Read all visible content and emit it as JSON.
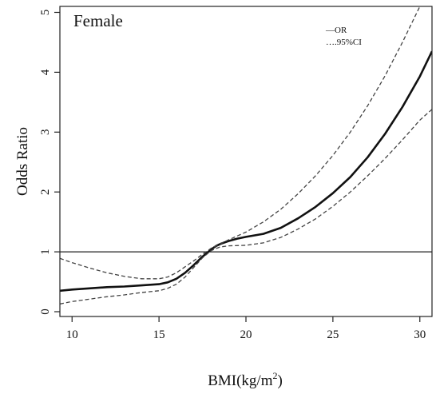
{
  "chart_data": {
    "type": "line",
    "panel_title": "Female",
    "xlabel": "BMI(kg/m",
    "xlabel_sup": "2",
    "xlabel_close": ")",
    "ylabel": "Odds Ratio",
    "xlim": [
      9.3,
      30.7
    ],
    "ylim": [
      -0.08,
      5.1
    ],
    "x_ticks": [
      10,
      15,
      20,
      25,
      30
    ],
    "y_ticks": [
      0,
      1,
      2,
      3,
      4,
      5
    ],
    "x_tick_labels": [
      "10",
      "15",
      "20",
      "25",
      "30"
    ],
    "y_tick_labels": [
      "0",
      "1",
      "2",
      "3",
      "4",
      "5"
    ],
    "reference_line": 1,
    "legend": {
      "placement": "top-right",
      "entries": [
        "—OR",
        "….95%CI"
      ]
    },
    "series": [
      {
        "name": "OR",
        "style": "solid",
        "x": [
          9.3,
          10,
          11,
          12,
          13,
          14,
          15,
          15.5,
          16,
          16.5,
          17,
          17.5,
          18,
          18.3,
          18.6,
          19,
          19.5,
          20,
          21,
          22,
          23,
          24,
          25,
          26,
          27,
          28,
          29,
          30,
          30.7
        ],
        "y": [
          0.35,
          0.37,
          0.39,
          0.41,
          0.42,
          0.44,
          0.46,
          0.49,
          0.55,
          0.65,
          0.78,
          0.92,
          1.04,
          1.1,
          1.14,
          1.18,
          1.22,
          1.25,
          1.3,
          1.4,
          1.56,
          1.75,
          1.98,
          2.25,
          2.58,
          2.97,
          3.42,
          3.93,
          4.35
        ]
      },
      {
        "name": "95%CI upper",
        "style": "dashed",
        "x": [
          9.3,
          10,
          11,
          12,
          13,
          14,
          15,
          15.5,
          16,
          16.5,
          17,
          17.5,
          18,
          18.5,
          19,
          20,
          21,
          22,
          23,
          24,
          25,
          26,
          27,
          28,
          29,
          30,
          30.5
        ],
        "y": [
          0.89,
          0.82,
          0.73,
          0.65,
          0.59,
          0.55,
          0.55,
          0.58,
          0.65,
          0.75,
          0.85,
          0.96,
          1.06,
          1.13,
          1.2,
          1.33,
          1.5,
          1.71,
          1.97,
          2.27,
          2.61,
          3.0,
          3.44,
          3.94,
          4.5,
          5.1,
          5.3
        ]
      },
      {
        "name": "95%CI lower",
        "style": "dashed",
        "x": [
          9.3,
          10,
          11,
          12,
          13,
          14,
          15,
          15.5,
          16,
          16.5,
          17,
          17.5,
          18,
          18.5,
          19,
          20,
          21,
          22,
          23,
          24,
          25,
          26,
          27,
          28,
          29,
          30,
          30.7
        ],
        "y": [
          0.13,
          0.17,
          0.21,
          0.25,
          0.28,
          0.32,
          0.35,
          0.39,
          0.46,
          0.58,
          0.74,
          0.9,
          1.02,
          1.08,
          1.1,
          1.11,
          1.15,
          1.24,
          1.38,
          1.55,
          1.76,
          2.0,
          2.27,
          2.56,
          2.87,
          3.2,
          3.38
        ]
      }
    ]
  }
}
